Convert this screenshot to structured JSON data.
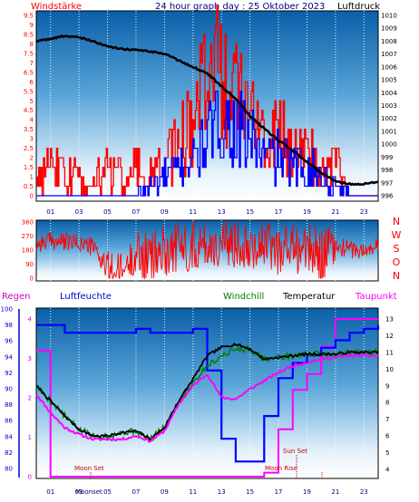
{
  "header": {
    "left_label": "Windstärke",
    "title": "24 hour graph day : 25 Oktober 2023",
    "right_label": "Luftdruck"
  },
  "colors": {
    "wind": "#ff0000",
    "gust": "#0000ff",
    "pressure": "#000000",
    "direction": "#ff0000",
    "humidity": "#0000ff",
    "temperature": "#000000",
    "windchill": "#008000",
    "dewpoint": "#ff00ff",
    "taupunkt_label": "#ff00ff",
    "regen_label": "#cc00cc",
    "hour_labels": "#000080",
    "title": "#000080"
  },
  "panel1": {
    "left_axis": {
      "ticks": [
        "0",
        "0.5",
        "1",
        "1.5",
        "2",
        "2.5",
        "3",
        "3.5",
        "4",
        "4.5",
        "5",
        "5.5",
        "6",
        "6.5",
        "7",
        "7.5",
        "8",
        "8.5",
        "9",
        "9.5"
      ]
    },
    "right_axis": {
      "ticks": [
        "996",
        "997",
        "998",
        "999",
        "1000",
        "1001",
        "1002",
        "1003",
        "1004",
        "1005",
        "1006",
        "1007",
        "1008",
        "1009",
        "1010"
      ]
    }
  },
  "panel2": {
    "left_axis": {
      "ticks": [
        "0",
        "90",
        "180",
        "270",
        "360"
      ]
    },
    "compass": [
      "N",
      "W",
      "S",
      "O",
      "N"
    ]
  },
  "panel3": {
    "legend": {
      "regen": "Regen",
      "luftfeuchte": "Luftfeuchte",
      "windchill": "Windchill",
      "temperatur": "Temperatur",
      "taupunkt": "Taupunkt"
    },
    "left_axis": {
      "ticks": [
        "80",
        "82",
        "84",
        "86",
        "88",
        "90",
        "92",
        "94",
        "96",
        "98",
        "100"
      ]
    },
    "inner_axis": {
      "ticks": [
        "0",
        "1",
        "2",
        "3",
        "4"
      ]
    },
    "right_axis": {
      "ticks": [
        "4",
        "5",
        "6",
        "7",
        "8",
        "9",
        "10",
        "11",
        "12",
        "13"
      ]
    },
    "annotations": {
      "moon_set": "Moon Set",
      "sun_set": "Sun Set",
      "moon_rise": "Moon Rise"
    },
    "extra_bottom_label": "Moonset"
  },
  "hours": [
    "01",
    "03",
    "05",
    "07",
    "09",
    "11",
    "13",
    "15",
    "17",
    "19",
    "21",
    "23"
  ],
  "chart_data": [
    {
      "type": "line",
      "title": "24 hour graph day : 25 Oktober 2023",
      "x": [
        0,
        1,
        2,
        3,
        4,
        5,
        6,
        7,
        8,
        9,
        10,
        11,
        12,
        13,
        14,
        15,
        16,
        17,
        18,
        19,
        20,
        21,
        22,
        23,
        24
      ],
      "xlim": [
        0,
        24
      ],
      "y_left": {
        "label": "Windstärke",
        "ylim": [
          0,
          9.5
        ]
      },
      "y_right": {
        "label": "Luftdruck",
        "ylim": [
          996,
          1010
        ]
      },
      "series": [
        {
          "name": "Luftdruck",
          "axis": "right",
          "values": [
            1008.0,
            1008.2,
            1008.4,
            1008.3,
            1008.0,
            1007.6,
            1007.4,
            1007.3,
            1007.2,
            1007.0,
            1006.5,
            1006.0,
            1005.5,
            1004.5,
            1003.5,
            1002.2,
            1001.2,
            1000.3,
            999.5,
            998.6,
            997.8,
            997.1,
            996.9,
            996.9,
            997.1
          ]
        },
        {
          "name": "Windstärke",
          "axis": "left",
          "values": [
            1.0,
            1.5,
            1.0,
            1.0,
            0.5,
            1.5,
            1.0,
            1.5,
            1.0,
            1.5,
            3.0,
            4.0,
            5.5,
            6.5,
            5.0,
            4.0,
            3.0,
            3.5,
            2.5,
            2.5,
            1.5,
            1.5,
            0,
            0,
            0
          ]
        },
        {
          "name": "Böen",
          "axis": "left",
          "values": [
            0,
            0,
            0,
            0,
            0,
            0,
            0,
            0,
            0.5,
            1.0,
            1.5,
            2.0,
            3.0,
            4.0,
            3.5,
            3.0,
            2.0,
            2.0,
            1.5,
            1.5,
            1.0,
            0.5,
            0,
            0,
            0
          ]
        }
      ]
    },
    {
      "type": "line",
      "x": [
        0,
        1,
        2,
        3,
        4,
        5,
        6,
        7,
        8,
        9,
        10,
        11,
        12,
        13,
        14,
        15,
        16,
        17,
        18,
        19,
        20,
        21,
        22,
        23,
        24
      ],
      "xlim": [
        0,
        24
      ],
      "ylim": [
        0,
        360
      ],
      "compass_labels": [
        "N",
        "W",
        "S",
        "O",
        "N"
      ],
      "series": [
        {
          "name": "Windrichtung",
          "values": [
            220,
            240,
            230,
            225,
            200,
            60,
            40,
            160,
            120,
            180,
            200,
            210,
            220,
            200,
            240,
            230,
            210,
            190,
            200,
            180,
            160,
            200,
            190,
            170,
            210
          ]
        }
      ]
    },
    {
      "type": "line",
      "x": [
        0,
        1,
        2,
        3,
        4,
        5,
        6,
        7,
        8,
        9,
        10,
        11,
        12,
        13,
        14,
        15,
        16,
        17,
        18,
        19,
        20,
        21,
        22,
        23,
        24
      ],
      "xlim": [
        0,
        24
      ],
      "y_left": {
        "label": "Luftfeuchte",
        "ylim": [
          79,
          101
        ]
      },
      "y_rain": {
        "label": "Regen",
        "ylim": [
          0,
          4
        ]
      },
      "y_right": {
        "label": "Temperatur",
        "ylim": [
          3.6,
          13.6
        ]
      },
      "series": [
        {
          "name": "Luftfeuchte",
          "axis": "left",
          "values": [
            99,
            99,
            98,
            98,
            98,
            98,
            98,
            98.5,
            98,
            98,
            98,
            98.5,
            93,
            84,
            81,
            81,
            87,
            92,
            94,
            95,
            96,
            97,
            98,
            98.5,
            99
          ]
        },
        {
          "name": "Temperatur",
          "axis": "right",
          "values": [
            9.0,
            8.1,
            7.2,
            6.4,
            6.0,
            6.0,
            6.2,
            6.3,
            5.8,
            6.5,
            8.1,
            9.4,
            10.8,
            11.3,
            11.5,
            11.2,
            10.6,
            10.7,
            10.8,
            10.9,
            10.9,
            10.9,
            11.0,
            11.0,
            11.0
          ]
        },
        {
          "name": "Windchill",
          "axis": "right",
          "values": [
            9.0,
            8.1,
            7.2,
            6.4,
            6.0,
            6.0,
            6.2,
            6.3,
            5.8,
            6.5,
            8.1,
            9.2,
            10.2,
            10.8,
            11.2,
            11.2,
            10.6,
            10.7,
            10.8,
            10.9,
            10.9,
            10.9,
            11.0,
            11.0,
            11.0
          ]
        },
        {
          "name": "Taupunkt",
          "axis": "right",
          "values": [
            8.5,
            7.4,
            6.5,
            6.1,
            5.8,
            5.8,
            5.8,
            6.0,
            5.7,
            6.3,
            7.9,
            9.0,
            9.7,
            8.3,
            8.2,
            8.8,
            9.3,
            9.8,
            10.2,
            10.4,
            10.6,
            10.7,
            10.8,
            10.8,
            10.8
          ]
        },
        {
          "name": "Regen",
          "axis": "rain",
          "values": [
            3.2,
            0,
            0,
            0,
            0,
            0,
            0,
            0,
            0,
            0,
            0,
            0,
            0,
            0,
            0,
            0,
            0.1,
            1.2,
            2.2,
            2.6,
            3.3,
            4.0,
            4.0,
            4.0,
            4.0
          ]
        }
      ]
    }
  ]
}
